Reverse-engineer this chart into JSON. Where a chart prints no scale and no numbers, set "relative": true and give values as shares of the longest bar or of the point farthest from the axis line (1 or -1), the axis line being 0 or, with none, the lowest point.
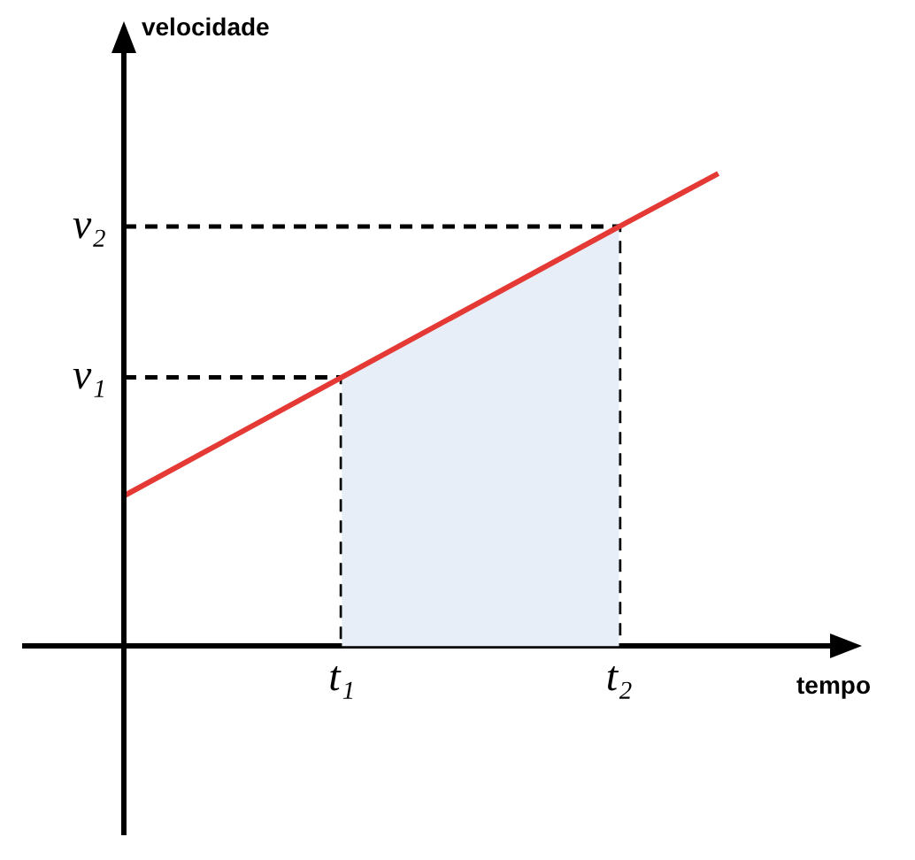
{
  "chart_data": {
    "type": "line",
    "xlabel": "tempo",
    "relative": true,
    "categories": [
      null,
      null,
      null,
      null,
      null,
      null,
      null,
      null,
      null,
      null,
      null,
      null,
      null,
      null,
      null,
      null,
      "t₁",
      null,
      null,
      null,
      null,
      null,
      null,
      null,
      null,
      null,
      null,
      null,
      null,
      null,
      "t₂",
      null,
      null,
      null,
      null,
      null,
      null,
      null,
      null,
      null,
      null,
      null
    ],
    "annotations": [
      "v₁",
      "v₂",
      "velocidade"
    ],
    "legend": false,
    "marker": "none",
    "series": [
      {
        "type": "area",
        "color": "#e8eef8",
        "values": [
          null,
          null,
          null,
          null,
          null,
          null,
          null,
          null,
          null,
          null,
          null,
          null,
          null,
          null,
          null,
          null,
          0.569,
          null,
          null,
          null,
          null,
          null,
          null,
          null,
          null,
          null,
          null,
          null,
          null,
          null,
          0.888,
          null,
          null,
          null,
          null,
          null,
          null,
          null,
          null,
          null,
          null,
          null
        ]
      },
      {
        "color": "#e53935",
        "line_style": "solid",
        "values": [
          null,
          null,
          null,
          null,
          null,
          0.318,
          null,
          null,
          null,
          null,
          null,
          null,
          null,
          null,
          null,
          null,
          0.569,
          null,
          null,
          null,
          null,
          null,
          null,
          null,
          null,
          null,
          null,
          null,
          null,
          null,
          0.888,
          null,
          null,
          null,
          null,
          1,
          null,
          null,
          null,
          null,
          null,
          null
        ]
      }
    ]
  }
}
